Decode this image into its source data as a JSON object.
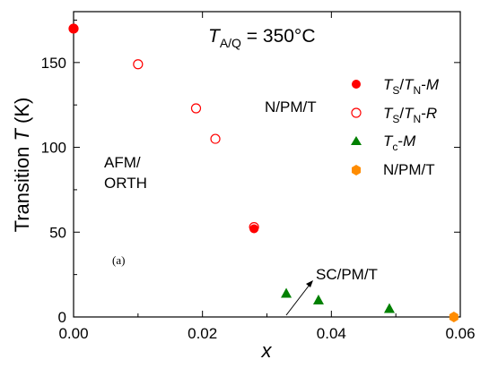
{
  "chart_data": {
    "type": "scatter",
    "title_main": "T",
    "title_sub": "A/Q",
    "title_rest": " = 350°C",
    "xlabel": "x",
    "ylabel_pre": "Transition ",
    "ylabel_var": "T",
    "ylabel_post": " (K)",
    "xlim": [
      0.0,
      0.06
    ],
    "ylim": [
      0,
      180
    ],
    "xticks": [
      0.0,
      0.02,
      0.04,
      0.06
    ],
    "xtick_labels": [
      "0.00",
      "0.02",
      "0.04",
      "0.06"
    ],
    "yticks": [
      0,
      50,
      100,
      150
    ],
    "ytick_labels": [
      "0",
      "50",
      "100",
      "150"
    ],
    "series": [
      {
        "marker": "filled-circle",
        "color": "#ff0000",
        "legend_parts": [
          "T",
          "S",
          "/",
          "T",
          "N",
          "-",
          "M"
        ],
        "x": [
          0.0,
          0.028
        ],
        "y": [
          170,
          52
        ]
      },
      {
        "marker": "open-circle",
        "color": "#ff0000",
        "legend_parts": [
          "T",
          "S",
          "/",
          "T",
          "N",
          "-",
          "R"
        ],
        "x": [
          0.0,
          0.01,
          0.019,
          0.022,
          0.028
        ],
        "y": [
          170,
          149,
          123,
          105,
          53
        ]
      },
      {
        "marker": "triangle",
        "color": "#008000",
        "legend_parts": [
          "T",
          "c",
          "-",
          "M"
        ],
        "x": [
          0.033,
          0.038,
          0.049
        ],
        "y": [
          14,
          10,
          5
        ]
      },
      {
        "marker": "hexagon",
        "color": "#ff8c00",
        "legend_parts": [
          "N/PM/T"
        ],
        "x": [
          0.059
        ],
        "y": [
          0
        ]
      }
    ],
    "annotations": {
      "npmt": "N/PM/T",
      "afm_line1": "AFM/",
      "afm_line2": "ORTH",
      "scpmt": "SC/PM/T",
      "panel": "(a)"
    },
    "legend_position": "right"
  }
}
